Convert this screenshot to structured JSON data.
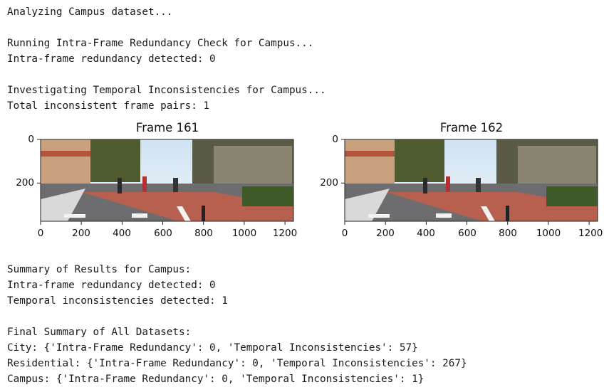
{
  "output": {
    "line_analyzing": "Analyzing Campus dataset...",
    "line_intra_running": "Running Intra-Frame Redundancy Check for Campus...",
    "line_intra_detected": "Intra-frame redundancy detected: 0",
    "line_temporal_running": "Investigating Temporal Inconsistencies for Campus...",
    "line_temporal_total": "Total inconsistent frame pairs: 1",
    "summary_header": "Summary of Results for Campus:",
    "summary_intra": "Intra-frame redundancy detected: 0",
    "summary_temporal": "Temporal inconsistencies detected: 1",
    "final_header": "Final Summary of All Datasets:",
    "final_city": "City: {'Intra-Frame Redundancy': 0, 'Temporal Inconsistencies': 57}",
    "final_residential": "Residential: {'Intra-Frame Redundancy': 0, 'Temporal Inconsistencies': 267}",
    "final_campus": "Campus: {'Intra-Frame Redundancy': 0, 'Temporal Inconsistencies': 1}"
  },
  "plots": [
    {
      "title": "Frame 161",
      "x_ticks": [
        "0",
        "200",
        "400",
        "600",
        "800",
        "1000",
        "1200"
      ],
      "y_ticks": [
        "0",
        "200"
      ],
      "x_range": [
        0,
        1242
      ],
      "y_range": [
        0,
        375
      ]
    },
    {
      "title": "Frame 162",
      "x_ticks": [
        "0",
        "200",
        "400",
        "600",
        "800",
        "1000",
        "1200"
      ],
      "y_ticks": [
        "0",
        "200"
      ],
      "x_range": [
        0,
        1242
      ],
      "y_range": [
        0,
        375
      ]
    }
  ]
}
